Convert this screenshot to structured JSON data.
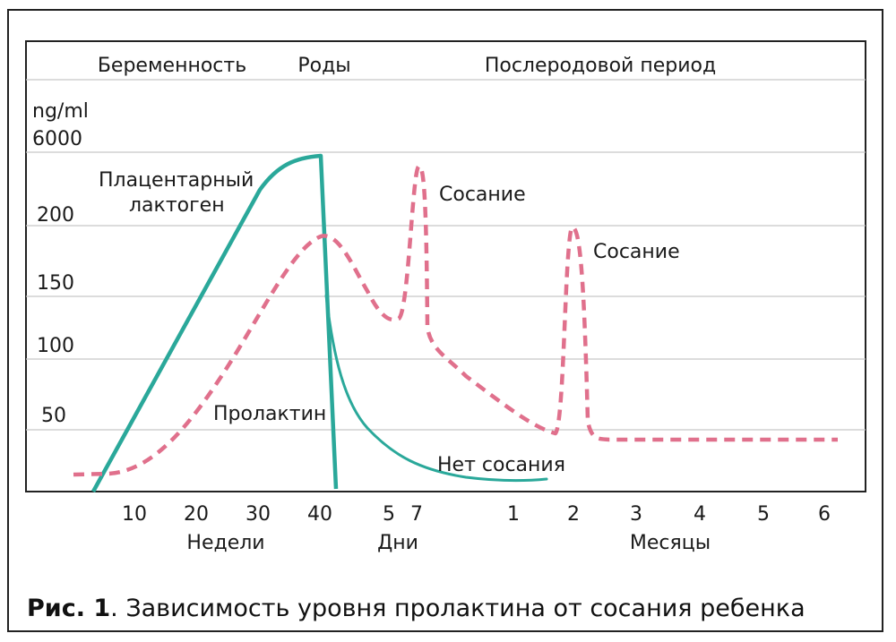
{
  "chart_data": {
    "type": "line",
    "title": "",
    "ylabel_unit": "ng/ml",
    "y_ticks": [
      "6000",
      "200",
      "150",
      "100",
      "50"
    ],
    "phases": [
      "Беременность",
      "Роды",
      "Послеродовой период"
    ],
    "x_tick_labels": [
      "10",
      "20",
      "30",
      "40",
      "5",
      "7",
      "1",
      "2",
      "3",
      "4",
      "5",
      "6"
    ],
    "x_group_labels": [
      "Недели",
      "Дни",
      "Месяцы"
    ],
    "series": [
      {
        "name": "Плацентарный лактоген",
        "color": "#2aa89a",
        "style": "solid",
        "points": [
          [
            "4 нед",
            0
          ],
          [
            "30 нед",
            6000
          ],
          [
            "40 нед",
            6000
          ],
          [
            "5 дн",
            0
          ]
        ]
      },
      {
        "name": "Пролактин",
        "color": "#e0708c",
        "style": "dashed",
        "points": [
          [
            "2 нед",
            15
          ],
          [
            "10 нед",
            20
          ],
          [
            "40 нед",
            190
          ],
          [
            "5 дн",
            130
          ],
          [
            "7 дн",
            6000
          ],
          [
            "1 мес",
            50
          ],
          [
            "2 мес",
            200
          ],
          [
            "6 мес",
            40
          ]
        ]
      },
      {
        "name": "Нет сосания",
        "color": "#2aa89a",
        "style": "solid",
        "points": [
          [
            "40 нед",
            150
          ],
          [
            "1 мес",
            15
          ],
          [
            "2 мес",
            10
          ]
        ]
      }
    ],
    "annotations": [
      "Плацентарный лактоген",
      "Пролактин",
      "Сосание",
      "Сосание",
      "Нет сосания"
    ],
    "grid": "horizontal"
  },
  "caption": {
    "prefix": "Рис. 1",
    "text": ". Зависимость уровня пролактина от сосания ребенка"
  }
}
